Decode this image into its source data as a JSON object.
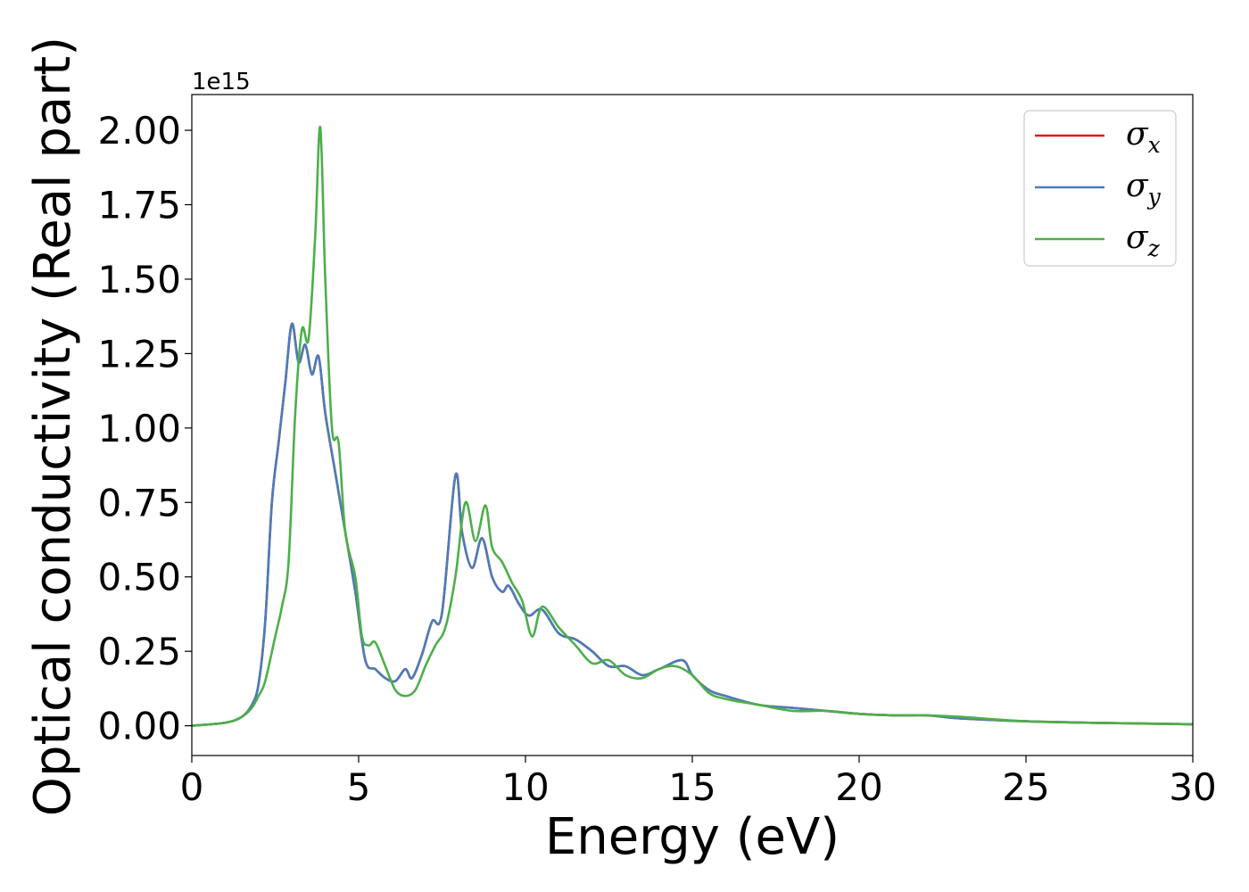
{
  "chart_data": {
    "type": "line",
    "xlabel": "Energy (eV)",
    "ylabel": "Optical conductivity (Real part)",
    "y_offset_label": "1e15",
    "xlim": [
      0,
      30
    ],
    "ylim": [
      -0.1,
      2.12
    ],
    "x_ticks": [
      "0",
      "5",
      "10",
      "15",
      "20",
      "25",
      "30"
    ],
    "y_ticks": [
      "0.00",
      "0.25",
      "0.50",
      "0.75",
      "1.00",
      "1.25",
      "1.50",
      "1.75",
      "2.00"
    ],
    "grid": false,
    "legend_position": "top-right",
    "series": [
      {
        "name": "σx",
        "label_base": "σ",
        "label_sub": "x",
        "color": "#e41a1c",
        "x": [
          0,
          1,
          1.5,
          1.8,
          2.0,
          2.2,
          2.4,
          2.6,
          2.8,
          3.0,
          3.2,
          3.4,
          3.6,
          3.8,
          4.0,
          4.3,
          4.6,
          4.9,
          5.2,
          5.5,
          5.8,
          6.1,
          6.4,
          6.6,
          6.9,
          7.2,
          7.5,
          7.9,
          8.1,
          8.4,
          8.7,
          9.0,
          9.3,
          9.5,
          9.8,
          10.1,
          10.5,
          11,
          11.5,
          12,
          12.5,
          13,
          13.5,
          14,
          14.7,
          15,
          15.5,
          16,
          17,
          18,
          19,
          20,
          21,
          22,
          22.5,
          23,
          25,
          27,
          30
        ],
        "y": [
          0,
          0.01,
          0.03,
          0.07,
          0.14,
          0.35,
          0.75,
          0.95,
          1.15,
          1.35,
          1.22,
          1.28,
          1.18,
          1.24,
          1.05,
          0.85,
          0.65,
          0.45,
          0.22,
          0.19,
          0.16,
          0.15,
          0.19,
          0.16,
          0.24,
          0.35,
          0.38,
          0.84,
          0.65,
          0.53,
          0.63,
          0.5,
          0.45,
          0.47,
          0.41,
          0.37,
          0.39,
          0.31,
          0.29,
          0.25,
          0.2,
          0.2,
          0.17,
          0.19,
          0.22,
          0.17,
          0.12,
          0.1,
          0.07,
          0.06,
          0.05,
          0.04,
          0.035,
          0.035,
          0.03,
          0.025,
          0.015,
          0.01,
          0.005
        ]
      },
      {
        "name": "σy",
        "label_base": "σ",
        "label_sub": "y",
        "color": "#4a7db8",
        "x": [
          0,
          1,
          1.5,
          1.8,
          2.0,
          2.2,
          2.4,
          2.6,
          2.8,
          3.0,
          3.2,
          3.4,
          3.6,
          3.8,
          4.0,
          4.3,
          4.6,
          4.9,
          5.2,
          5.5,
          5.8,
          6.1,
          6.4,
          6.6,
          6.9,
          7.2,
          7.5,
          7.9,
          8.1,
          8.4,
          8.7,
          9.0,
          9.3,
          9.5,
          9.8,
          10.1,
          10.5,
          11,
          11.5,
          12,
          12.5,
          13,
          13.5,
          14,
          14.7,
          15,
          15.5,
          16,
          17,
          18,
          19,
          20,
          21,
          22,
          22.5,
          23,
          25,
          27,
          30
        ],
        "y": [
          0,
          0.01,
          0.03,
          0.07,
          0.14,
          0.35,
          0.75,
          0.95,
          1.15,
          1.35,
          1.22,
          1.28,
          1.18,
          1.24,
          1.05,
          0.85,
          0.65,
          0.45,
          0.22,
          0.19,
          0.16,
          0.15,
          0.19,
          0.16,
          0.24,
          0.35,
          0.38,
          0.84,
          0.65,
          0.53,
          0.63,
          0.5,
          0.45,
          0.47,
          0.41,
          0.37,
          0.39,
          0.31,
          0.29,
          0.25,
          0.2,
          0.2,
          0.17,
          0.19,
          0.22,
          0.17,
          0.12,
          0.1,
          0.07,
          0.06,
          0.05,
          0.04,
          0.035,
          0.035,
          0.03,
          0.025,
          0.015,
          0.01,
          0.005
        ]
      },
      {
        "name": "σz",
        "label_base": "σ",
        "label_sub": "z",
        "color": "#4daf4a",
        "x": [
          0,
          1,
          1.5,
          1.8,
          2.0,
          2.2,
          2.5,
          2.7,
          2.9,
          3.1,
          3.3,
          3.5,
          3.7,
          3.85,
          4.0,
          4.2,
          4.4,
          4.6,
          4.9,
          5.1,
          5.3,
          5.5,
          5.8,
          6.1,
          6.4,
          6.7,
          7.0,
          7.3,
          7.6,
          7.9,
          8.2,
          8.5,
          8.8,
          9.0,
          9.3,
          9.6,
          9.9,
          10.2,
          10.5,
          11,
          11.5,
          12,
          12.5,
          13,
          13.5,
          14,
          14.5,
          15,
          15.5,
          16,
          17,
          18,
          19,
          20,
          21,
          22,
          23,
          25,
          27,
          30
        ],
        "y": [
          0,
          0.01,
          0.03,
          0.06,
          0.1,
          0.15,
          0.3,
          0.4,
          0.55,
          1.05,
          1.33,
          1.3,
          1.65,
          2.01,
          1.5,
          1.0,
          0.95,
          0.65,
          0.5,
          0.3,
          0.27,
          0.28,
          0.2,
          0.12,
          0.1,
          0.12,
          0.2,
          0.27,
          0.33,
          0.5,
          0.75,
          0.62,
          0.74,
          0.6,
          0.55,
          0.48,
          0.42,
          0.3,
          0.4,
          0.33,
          0.27,
          0.21,
          0.22,
          0.17,
          0.16,
          0.19,
          0.2,
          0.17,
          0.11,
          0.09,
          0.07,
          0.05,
          0.05,
          0.04,
          0.035,
          0.035,
          0.03,
          0.015,
          0.01,
          0.005
        ]
      }
    ]
  }
}
